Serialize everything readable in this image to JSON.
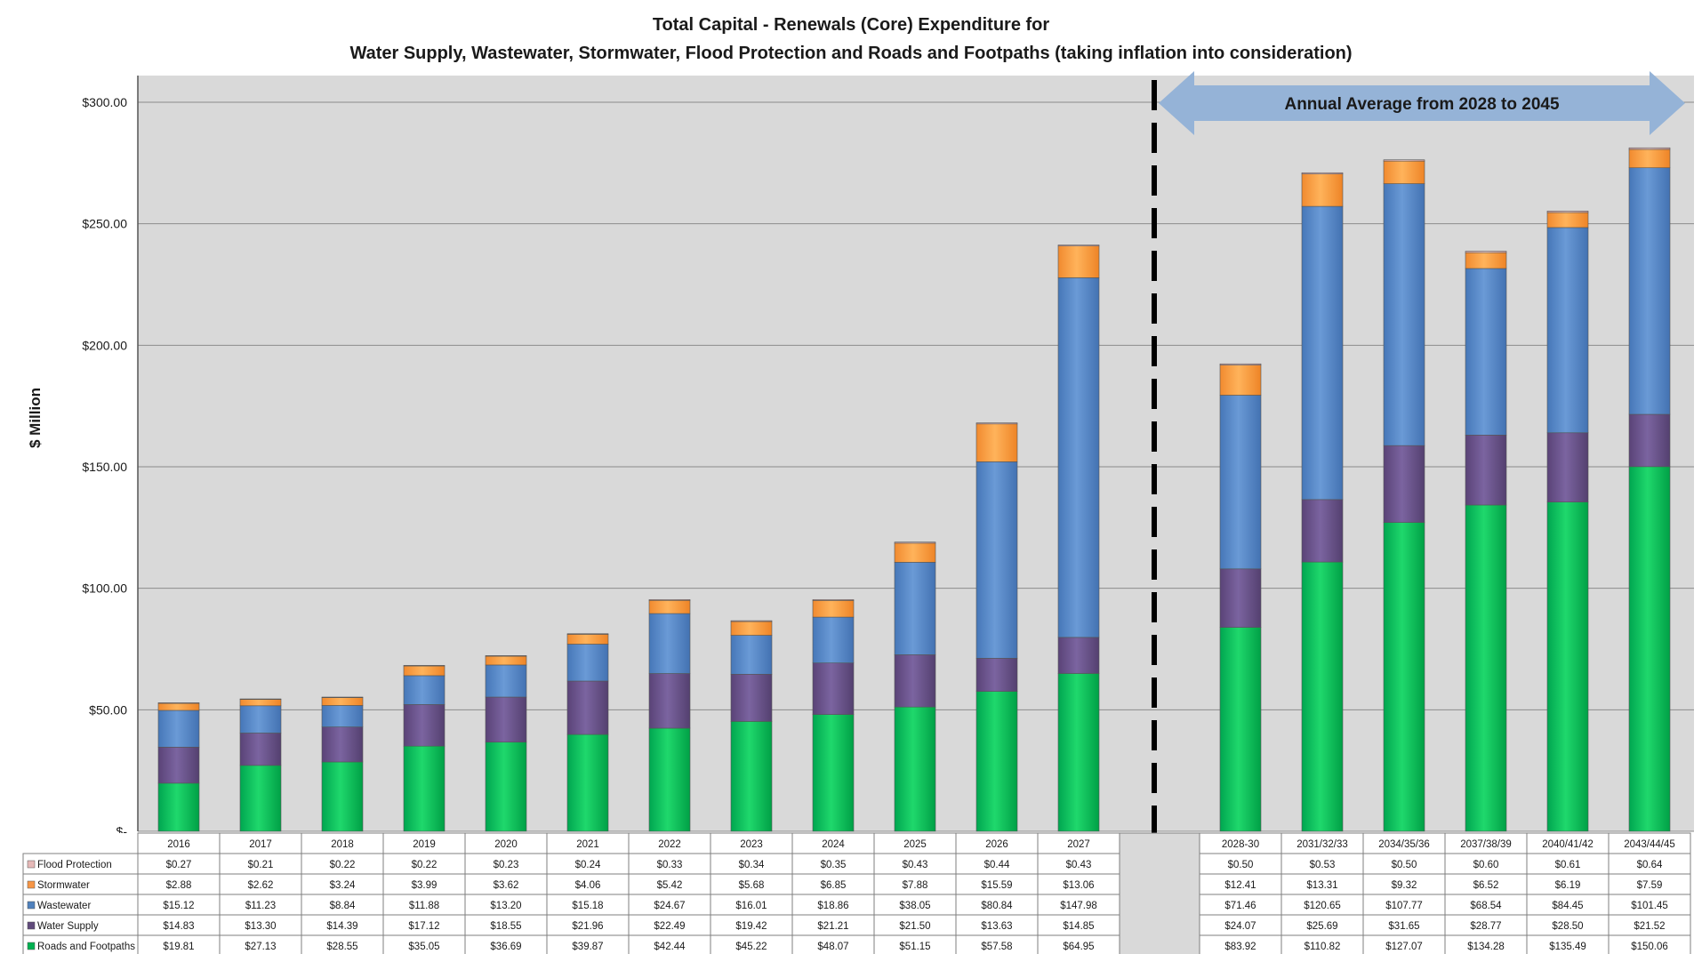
{
  "chart_data": {
    "type": "bar",
    "stacked": true,
    "title": "Total Capital - Renewals (Core) Expenditure for",
    "subtitle": "Water Supply, Wastewater, Stormwater, Flood Protection and Roads and Footpaths (taking inflation into consideration)",
    "ylabel": "$ Million",
    "xlabel": "",
    "ylim": [
      0,
      300
    ],
    "yticks": [
      "$-",
      "$50.00",
      "$100.00",
      "$150.00",
      "$200.00",
      "$250.00",
      "$300.00"
    ],
    "grid": true,
    "annotation": "Annual Average from 2028 to 2045",
    "categories": [
      "2016",
      "2017",
      "2018",
      "2019",
      "2020",
      "2021",
      "2022",
      "2023",
      "2024",
      "2025",
      "2026",
      "2027",
      "2028-30",
      "2031/32/33",
      "2034/35/36",
      "2037/38/39",
      "2040/41/42",
      "2043/44/45"
    ],
    "series": [
      {
        "name": "Roads and Footpaths",
        "color": "#00b050",
        "values": [
          19.81,
          27.13,
          28.55,
          35.05,
          36.69,
          39.87,
          42.44,
          45.22,
          48.07,
          51.15,
          57.58,
          64.95,
          83.92,
          110.82,
          127.07,
          134.28,
          135.49,
          150.06
        ],
        "labels": [
          "$19.81",
          "$27.13",
          "$28.55",
          "$35.05",
          "$36.69",
          "$39.87",
          "$42.44",
          "$45.22",
          "$48.07",
          "$51.15",
          "$57.58",
          "$64.95",
          "$83.92",
          "$110.82",
          "$127.07",
          "$134.28",
          "$135.49",
          "$150.06"
        ]
      },
      {
        "name": "Water Supply",
        "color": "#604a7b",
        "values": [
          14.83,
          13.3,
          14.39,
          17.12,
          18.55,
          21.96,
          22.49,
          19.42,
          21.21,
          21.5,
          13.63,
          14.85,
          24.07,
          25.69,
          31.65,
          28.77,
          28.5,
          21.52
        ],
        "labels": [
          "$14.83",
          "$13.30",
          "$14.39",
          "$17.12",
          "$18.55",
          "$21.96",
          "$22.49",
          "$19.42",
          "$21.21",
          "$21.50",
          "$13.63",
          "$14.85",
          "$24.07",
          "$25.69",
          "$31.65",
          "$28.77",
          "$28.50",
          "$21.52"
        ]
      },
      {
        "name": "Wastewater",
        "color": "#4f81bd",
        "values": [
          15.12,
          11.23,
          8.84,
          11.88,
          13.2,
          15.18,
          24.67,
          16.01,
          18.86,
          38.05,
          80.84,
          147.98,
          71.46,
          120.65,
          107.77,
          68.54,
          84.45,
          101.45
        ],
        "labels": [
          "$15.12",
          "$11.23",
          "$8.84",
          "$11.88",
          "$13.20",
          "$15.18",
          "$24.67",
          "$16.01",
          "$18.86",
          "$38.05",
          "$80.84",
          "$147.98",
          "$71.46",
          "$120.65",
          "$107.77",
          "$68.54",
          "$84.45",
          "$101.45"
        ]
      },
      {
        "name": "Stormwater",
        "color": "#f79646",
        "values": [
          2.88,
          2.62,
          3.24,
          3.99,
          3.62,
          4.06,
          5.42,
          5.68,
          6.85,
          7.88,
          15.59,
          13.06,
          12.41,
          13.31,
          9.32,
          6.52,
          6.19,
          7.59
        ],
        "labels": [
          "$2.88",
          "$2.62",
          "$3.24",
          "$3.99",
          "$3.62",
          "$4.06",
          "$5.42",
          "$5.68",
          "$6.85",
          "$7.88",
          "$15.59",
          "$13.06",
          "$12.41",
          "$13.31",
          "$9.32",
          "$6.52",
          "$6.19",
          "$7.59"
        ]
      },
      {
        "name": "Flood Protection",
        "color": "#e6b9b8",
        "values": [
          0.27,
          0.21,
          0.22,
          0.22,
          0.23,
          0.24,
          0.33,
          0.34,
          0.35,
          0.43,
          0.44,
          0.43,
          0.5,
          0.53,
          0.5,
          0.6,
          0.61,
          0.64
        ],
        "labels": [
          "$0.27",
          "$0.21",
          "$0.22",
          "$0.22",
          "$0.23",
          "$0.24",
          "$0.33",
          "$0.34",
          "$0.35",
          "$0.43",
          "$0.44",
          "$0.43",
          "$0.50",
          "$0.53",
          "$0.50",
          "$0.60",
          "$0.61",
          "$0.64"
        ]
      }
    ],
    "table_row_order": [
      "Flood Protection",
      "Stormwater",
      "Wastewater",
      "Water Supply",
      "Roads and Footpaths"
    ]
  }
}
